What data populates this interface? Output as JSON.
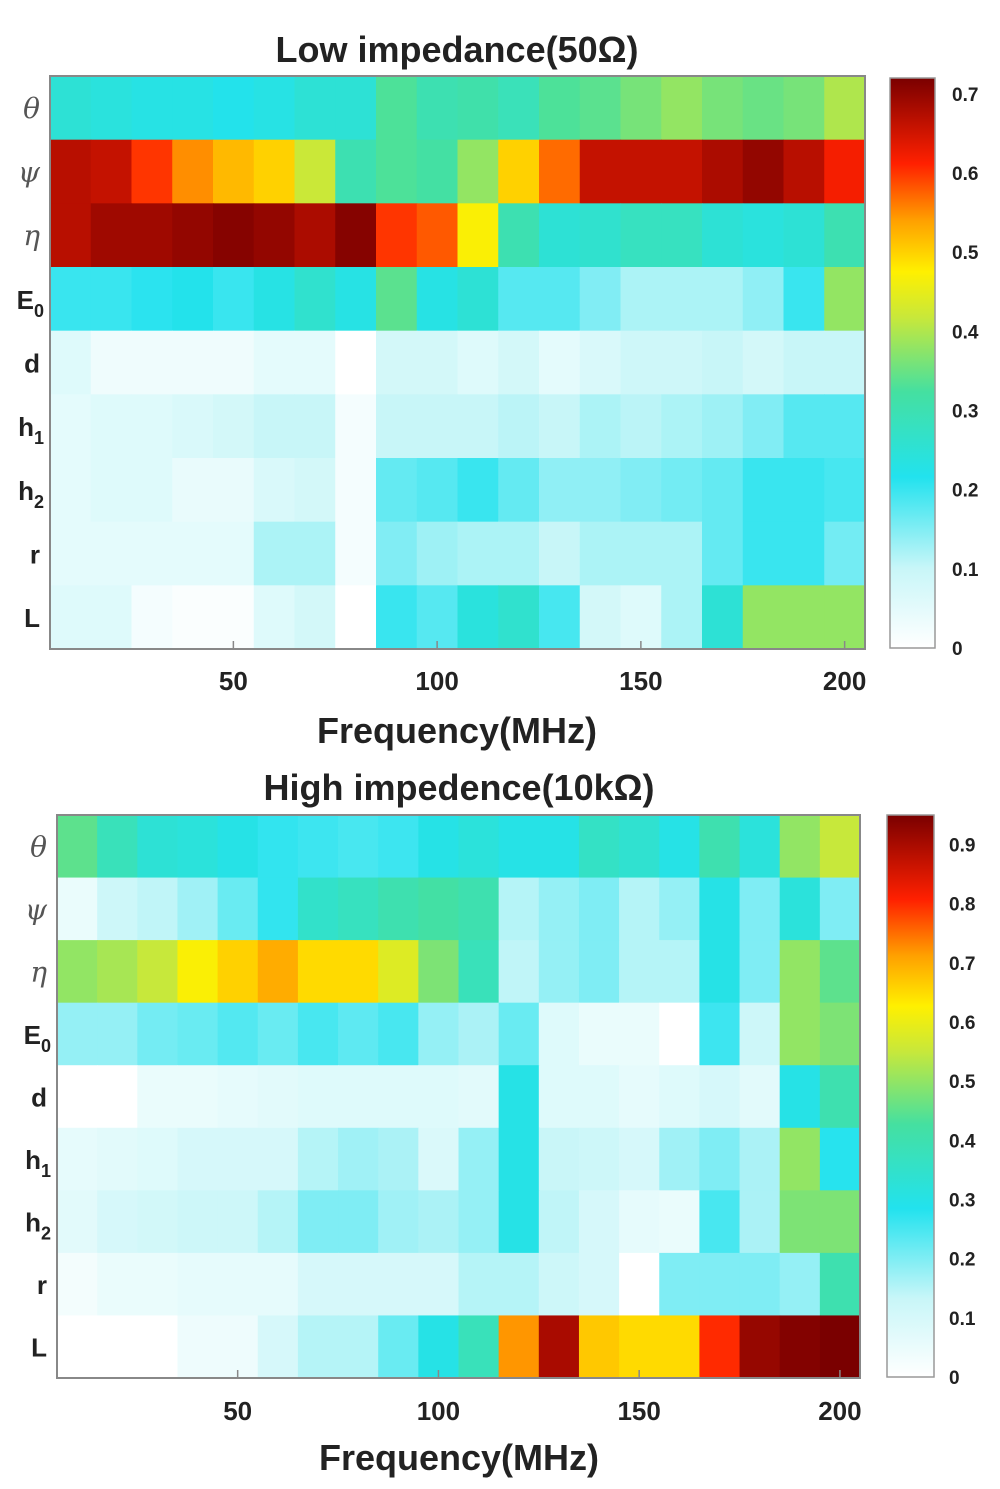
{
  "chart_data": [
    {
      "type": "heatmap",
      "title": "Low impedance(50Ω)",
      "xlabel": "Frequency(MHz)",
      "ylabel": "",
      "x": [
        10,
        20,
        30,
        40,
        50,
        60,
        70,
        80,
        90,
        100,
        110,
        120,
        130,
        140,
        150,
        160,
        170,
        180,
        190,
        200
      ],
      "x_ticks": [
        50,
        100,
        150,
        200
      ],
      "rows": [
        "θ",
        "ψ",
        "η",
        "E0",
        "d",
        "h1",
        "h2",
        "r",
        "L"
      ],
      "colorbar": {
        "min": 0,
        "max": 0.72,
        "ticks": [
          "0",
          "0.1",
          "0.2",
          "0.3",
          "0.4",
          "0.5",
          "0.6",
          "0.7"
        ]
      },
      "values": [
        [
          0.25,
          0.24,
          0.23,
          0.23,
          0.22,
          0.23,
          0.25,
          0.25,
          0.33,
          0.3,
          0.31,
          0.29,
          0.33,
          0.34,
          0.36,
          0.38,
          0.36,
          0.35,
          0.36,
          0.4
        ],
        [
          0.67,
          0.66,
          0.6,
          0.55,
          0.52,
          0.5,
          0.42,
          0.3,
          0.33,
          0.32,
          0.38,
          0.5,
          0.57,
          0.66,
          0.66,
          0.66,
          0.68,
          0.7,
          0.67,
          0.62
        ],
        [
          0.67,
          0.69,
          0.69,
          0.7,
          0.71,
          0.7,
          0.68,
          0.71,
          0.6,
          0.58,
          0.47,
          0.3,
          0.25,
          0.26,
          0.28,
          0.28,
          0.25,
          0.24,
          0.25,
          0.3
        ],
        [
          0.2,
          0.2,
          0.21,
          0.22,
          0.2,
          0.23,
          0.26,
          0.23,
          0.34,
          0.23,
          0.25,
          0.18,
          0.18,
          0.15,
          0.12,
          0.12,
          0.12,
          0.14,
          0.2,
          0.38
        ],
        [
          0.06,
          0.03,
          0.03,
          0.03,
          0.03,
          0.05,
          0.05,
          0.0,
          0.08,
          0.08,
          0.06,
          0.08,
          0.05,
          0.07,
          0.09,
          0.09,
          0.1,
          0.08,
          0.1,
          0.1
        ],
        [
          0.05,
          0.06,
          0.06,
          0.07,
          0.08,
          0.1,
          0.1,
          0.02,
          0.1,
          0.1,
          0.1,
          0.11,
          0.1,
          0.12,
          0.11,
          0.12,
          0.13,
          0.15,
          0.18,
          0.18
        ],
        [
          0.05,
          0.06,
          0.06,
          0.04,
          0.04,
          0.07,
          0.08,
          0.02,
          0.17,
          0.18,
          0.2,
          0.17,
          0.14,
          0.14,
          0.15,
          0.16,
          0.17,
          0.2,
          0.2,
          0.19
        ],
        [
          0.05,
          0.05,
          0.05,
          0.05,
          0.05,
          0.12,
          0.12,
          0.02,
          0.15,
          0.13,
          0.12,
          0.12,
          0.1,
          0.12,
          0.12,
          0.12,
          0.17,
          0.2,
          0.2,
          0.16
        ],
        [
          0.06,
          0.06,
          0.02,
          0.01,
          0.01,
          0.06,
          0.08,
          0.0,
          0.2,
          0.18,
          0.24,
          0.26,
          0.19,
          0.08,
          0.06,
          0.12,
          0.25,
          0.38,
          0.38,
          0.38
        ]
      ]
    },
    {
      "type": "heatmap",
      "title": "High impedence(10kΩ)",
      "xlabel": "Frequency(MHz)",
      "ylabel": "",
      "x": [
        10,
        20,
        30,
        40,
        50,
        60,
        70,
        80,
        90,
        100,
        110,
        120,
        130,
        140,
        150,
        160,
        170,
        180,
        190,
        200
      ],
      "x_ticks": [
        50,
        100,
        150,
        200
      ],
      "rows": [
        "θ",
        "ψ",
        "η",
        "E0",
        "d",
        "h1",
        "h2",
        "r",
        "L"
      ],
      "colorbar": {
        "min": 0,
        "max": 0.95,
        "ticks": [
          "0",
          "0.1",
          "0.2",
          "0.3",
          "0.4",
          "0.5",
          "0.6",
          "0.7",
          "0.8",
          "0.9"
        ]
      },
      "values": [
        [
          0.45,
          0.38,
          0.33,
          0.32,
          0.3,
          0.27,
          0.26,
          0.25,
          0.26,
          0.3,
          0.32,
          0.3,
          0.3,
          0.36,
          0.34,
          0.3,
          0.4,
          0.32,
          0.5,
          0.55
        ],
        [
          0.05,
          0.12,
          0.14,
          0.17,
          0.22,
          0.27,
          0.35,
          0.37,
          0.4,
          0.42,
          0.4,
          0.15,
          0.18,
          0.2,
          0.15,
          0.18,
          0.3,
          0.2,
          0.32,
          0.2
        ],
        [
          0.5,
          0.52,
          0.55,
          0.62,
          0.66,
          0.7,
          0.65,
          0.65,
          0.58,
          0.48,
          0.38,
          0.14,
          0.18,
          0.2,
          0.15,
          0.15,
          0.3,
          0.2,
          0.5,
          0.45
        ],
        [
          0.18,
          0.18,
          0.21,
          0.22,
          0.24,
          0.22,
          0.25,
          0.23,
          0.25,
          0.18,
          0.16,
          0.22,
          0.08,
          0.05,
          0.05,
          0.0,
          0.26,
          0.12,
          0.5,
          0.48
        ],
        [
          0.0,
          0.0,
          0.05,
          0.05,
          0.06,
          0.07,
          0.08,
          0.08,
          0.08,
          0.08,
          0.07,
          0.3,
          0.08,
          0.08,
          0.06,
          0.08,
          0.1,
          0.07,
          0.3,
          0.4
        ],
        [
          0.06,
          0.07,
          0.08,
          0.1,
          0.1,
          0.1,
          0.15,
          0.17,
          0.16,
          0.09,
          0.18,
          0.3,
          0.13,
          0.12,
          0.1,
          0.17,
          0.2,
          0.16,
          0.5,
          0.28
        ],
        [
          0.07,
          0.1,
          0.11,
          0.12,
          0.12,
          0.15,
          0.2,
          0.2,
          0.17,
          0.16,
          0.18,
          0.3,
          0.14,
          0.1,
          0.06,
          0.05,
          0.25,
          0.16,
          0.48,
          0.48
        ],
        [
          0.03,
          0.05,
          0.05,
          0.06,
          0.06,
          0.06,
          0.1,
          0.1,
          0.1,
          0.1,
          0.15,
          0.15,
          0.12,
          0.1,
          0.0,
          0.2,
          0.2,
          0.2,
          0.18,
          0.4
        ],
        [
          0.0,
          0.0,
          0.0,
          0.04,
          0.04,
          0.1,
          0.15,
          0.15,
          0.22,
          0.3,
          0.38,
          0.72,
          0.9,
          0.67,
          0.65,
          0.65,
          0.8,
          0.92,
          0.94,
          0.95
        ]
      ]
    }
  ]
}
